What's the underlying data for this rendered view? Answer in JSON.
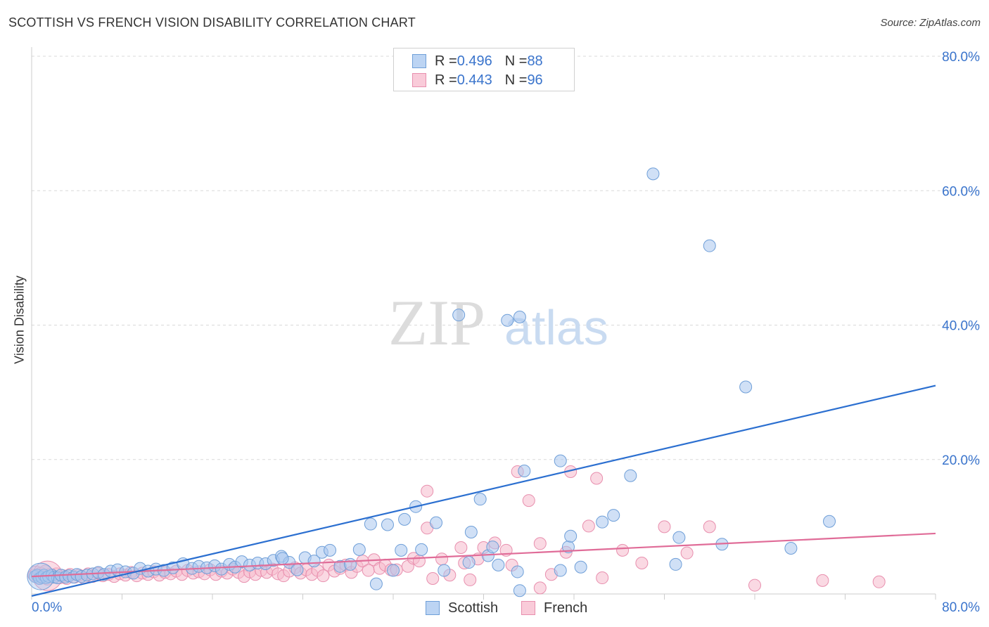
{
  "title": "SCOTTISH VS FRENCH VISION DISABILITY CORRELATION CHART",
  "source": "Source: ZipAtlas.com",
  "legend": {
    "scottish": {
      "r_label": "R = ",
      "r_value": "0.496",
      "n_label": "N = ",
      "n_value": "88"
    },
    "french": {
      "r_label": "R = ",
      "r_value": "0.443",
      "n_label": "N = ",
      "n_value": "96"
    }
  },
  "bottom_legend": {
    "scottish": "Scottish",
    "french": "French"
  },
  "colors": {
    "scottish_fill": "#a9c7ef",
    "scottish_stroke": "#6f9fd8",
    "scottish_line": "#2b6fd0",
    "french_fill": "#f6b9cc",
    "french_stroke": "#e88fae",
    "french_line": "#e06c98",
    "grid": "#d9d9d9",
    "tick_label": "#3a74cc"
  },
  "chart_data": {
    "type": "scatter",
    "title": "SCOTTISH VS FRENCH VISION DISABILITY CORRELATION CHART",
    "xlabel": "",
    "ylabel": "Vision Disability",
    "xlim": [
      0,
      80
    ],
    "ylim": [
      0,
      80
    ],
    "x_tick_labels": [
      "0.0%",
      "80.0%"
    ],
    "y_ticks": [
      20,
      40,
      60,
      80
    ],
    "y_tick_labels": [
      "20.0%",
      "40.0%",
      "60.0%",
      "80.0%"
    ],
    "watermark": {
      "zip": "ZIP",
      "atlas": "atlas"
    },
    "series": [
      {
        "name": "Scottish",
        "r": 0.496,
        "n": 88,
        "trend": {
          "x": [
            0,
            80
          ],
          "y": [
            -0.3,
            31.0
          ]
        },
        "points": [
          [
            0.3,
            2.6
          ],
          [
            0.5,
            2.8
          ],
          [
            0.7,
            2.3
          ],
          [
            0.9,
            2.5
          ],
          [
            1.1,
            2.8
          ],
          [
            1.3,
            2.4
          ],
          [
            1.5,
            2.6
          ],
          [
            1.8,
            2.8
          ],
          [
            2.0,
            2.5
          ],
          [
            2.3,
            2.4
          ],
          [
            2.6,
            2.8
          ],
          [
            3.0,
            2.5
          ],
          [
            3.3,
            2.7
          ],
          [
            3.7,
            2.5
          ],
          [
            4.0,
            2.9
          ],
          [
            4.4,
            2.6
          ],
          [
            4.9,
            2.8
          ],
          [
            5.4,
            3.0
          ],
          [
            5.9,
            3.2
          ],
          [
            6.4,
            2.9
          ],
          [
            7.0,
            3.4
          ],
          [
            7.6,
            3.6
          ],
          [
            8.3,
            3.3
          ],
          [
            9.0,
            3.1
          ],
          [
            9.6,
            3.8
          ],
          [
            10.3,
            3.4
          ],
          [
            11.0,
            3.7
          ],
          [
            11.7,
            3.5
          ],
          [
            12.5,
            3.9
          ],
          [
            13.4,
            4.5
          ],
          [
            14.2,
            3.8
          ],
          [
            14.8,
            4.1
          ],
          [
            15.5,
            3.9
          ],
          [
            16.2,
            4.2
          ],
          [
            16.8,
            3.7
          ],
          [
            17.5,
            4.4
          ],
          [
            18.0,
            4.0
          ],
          [
            18.6,
            4.8
          ],
          [
            19.3,
            4.3
          ],
          [
            20.0,
            4.6
          ],
          [
            20.7,
            4.5
          ],
          [
            21.4,
            5.0
          ],
          [
            22.1,
            5.6
          ],
          [
            22.8,
            4.7
          ],
          [
            23.5,
            3.6
          ],
          [
            24.2,
            5.4
          ],
          [
            25.0,
            4.9
          ],
          [
            25.7,
            6.2
          ],
          [
            26.4,
            6.5
          ],
          [
            27.3,
            4.1
          ],
          [
            28.2,
            4.4
          ],
          [
            29.0,
            6.6
          ],
          [
            22.2,
            5.3
          ],
          [
            30.0,
            10.4
          ],
          [
            30.5,
            1.5
          ],
          [
            31.5,
            10.3
          ],
          [
            32.0,
            3.5
          ],
          [
            32.7,
            6.5
          ],
          [
            33.0,
            11.1
          ],
          [
            34.0,
            13.0
          ],
          [
            34.5,
            6.6
          ],
          [
            35.8,
            10.6
          ],
          [
            36.5,
            3.5
          ],
          [
            37.8,
            41.5
          ],
          [
            38.7,
            4.7
          ],
          [
            38.9,
            9.2
          ],
          [
            39.7,
            14.1
          ],
          [
            40.4,
            5.7
          ],
          [
            40.8,
            7.0
          ],
          [
            41.3,
            4.3
          ],
          [
            42.1,
            40.7
          ],
          [
            43.2,
            41.2
          ],
          [
            43.2,
            0.5
          ],
          [
            43.6,
            18.3
          ],
          [
            43.0,
            3.3
          ],
          [
            46.8,
            19.8
          ],
          [
            46.8,
            3.5
          ],
          [
            47.5,
            7.0
          ],
          [
            47.7,
            8.6
          ],
          [
            48.6,
            4.0
          ],
          [
            50.5,
            10.7
          ],
          [
            51.5,
            11.7
          ],
          [
            53.0,
            17.6
          ],
          [
            55.0,
            62.5
          ],
          [
            57.0,
            4.4
          ],
          [
            57.3,
            8.4
          ],
          [
            60.0,
            51.8
          ],
          [
            61.1,
            7.4
          ],
          [
            63.2,
            30.8
          ],
          [
            67.2,
            6.8
          ],
          [
            70.6,
            10.8
          ]
        ],
        "big_point": [
          0.8,
          2.6
        ]
      },
      {
        "name": "French",
        "r": 0.443,
        "n": 96,
        "trend": {
          "x": [
            0,
            80
          ],
          "y": [
            2.6,
            9.0
          ]
        },
        "points": [
          [
            0.2,
            2.8
          ],
          [
            0.4,
            3.3
          ],
          [
            0.6,
            2.4
          ],
          [
            0.8,
            3.1
          ],
          [
            1.0,
            2.6
          ],
          [
            1.2,
            3.4
          ],
          [
            1.4,
            2.2
          ],
          [
            1.6,
            2.9
          ],
          [
            1.9,
            2.5
          ],
          [
            2.2,
            3.0
          ],
          [
            2.5,
            2.4
          ],
          [
            2.8,
            2.7
          ],
          [
            3.1,
            2.3
          ],
          [
            3.4,
            2.9
          ],
          [
            3.8,
            2.5
          ],
          [
            4.2,
            2.8
          ],
          [
            4.6,
            2.4
          ],
          [
            5.0,
            3.0
          ],
          [
            5.4,
            2.6
          ],
          [
            5.8,
            3.1
          ],
          [
            6.3,
            2.7
          ],
          [
            6.8,
            2.9
          ],
          [
            7.3,
            2.6
          ],
          [
            7.8,
            3.0
          ],
          [
            8.3,
            2.8
          ],
          [
            8.8,
            3.2
          ],
          [
            9.3,
            2.7
          ],
          [
            9.8,
            3.1
          ],
          [
            10.3,
            2.9
          ],
          [
            10.8,
            3.3
          ],
          [
            11.3,
            2.8
          ],
          [
            11.8,
            3.2
          ],
          [
            12.3,
            3.0
          ],
          [
            12.8,
            3.4
          ],
          [
            13.3,
            2.9
          ],
          [
            13.8,
            3.5
          ],
          [
            14.3,
            3.1
          ],
          [
            14.8,
            3.3
          ],
          [
            15.3,
            3.0
          ],
          [
            15.8,
            3.6
          ],
          [
            16.3,
            2.9
          ],
          [
            16.8,
            3.4
          ],
          [
            17.3,
            3.1
          ],
          [
            17.8,
            3.7
          ],
          [
            18.3,
            3.2
          ],
          [
            18.8,
            2.6
          ],
          [
            19.3,
            3.3
          ],
          [
            19.8,
            2.9
          ],
          [
            20.3,
            3.5
          ],
          [
            20.8,
            3.2
          ],
          [
            21.3,
            3.7
          ],
          [
            21.8,
            3.0
          ],
          [
            22.3,
            2.7
          ],
          [
            22.8,
            3.4
          ],
          [
            23.3,
            3.9
          ],
          [
            23.8,
            3.1
          ],
          [
            24.3,
            3.6
          ],
          [
            24.8,
            2.9
          ],
          [
            25.3,
            3.5
          ],
          [
            25.8,
            2.7
          ],
          [
            26.3,
            4.3
          ],
          [
            26.8,
            3.4
          ],
          [
            27.3,
            3.8
          ],
          [
            27.8,
            4.3
          ],
          [
            28.3,
            3.2
          ],
          [
            28.8,
            4.1
          ],
          [
            29.3,
            4.9
          ],
          [
            29.8,
            3.5
          ],
          [
            30.3,
            5.1
          ],
          [
            30.8,
            3.8
          ],
          [
            31.3,
            4.3
          ],
          [
            31.8,
            3.6
          ],
          [
            32.3,
            3.6
          ],
          [
            33.3,
            4.1
          ],
          [
            33.8,
            5.3
          ],
          [
            34.3,
            4.9
          ],
          [
            35.0,
            15.3
          ],
          [
            35.0,
            9.8
          ],
          [
            35.5,
            2.3
          ],
          [
            36.3,
            5.2
          ],
          [
            37.0,
            2.8
          ],
          [
            38.0,
            6.9
          ],
          [
            38.3,
            4.6
          ],
          [
            38.8,
            2.1
          ],
          [
            39.5,
            5.2
          ],
          [
            40.0,
            6.9
          ],
          [
            41.0,
            7.6
          ],
          [
            42.0,
            6.5
          ],
          [
            42.5,
            4.3
          ],
          [
            43.0,
            18.2
          ],
          [
            44.0,
            13.9
          ],
          [
            45.0,
            0.9
          ],
          [
            45.0,
            7.5
          ],
          [
            46.0,
            2.9
          ],
          [
            47.3,
            6.2
          ],
          [
            47.7,
            18.2
          ],
          [
            49.3,
            10.1
          ],
          [
            50.0,
            17.2
          ],
          [
            50.5,
            2.4
          ],
          [
            52.3,
            6.5
          ],
          [
            54.0,
            4.6
          ],
          [
            56.0,
            10.0
          ],
          [
            58.0,
            6.1
          ],
          [
            60.0,
            10.0
          ],
          [
            64.0,
            1.3
          ],
          [
            70.0,
            2.0
          ],
          [
            75.0,
            1.8
          ]
        ],
        "big_point": [
          1.4,
          2.7
        ]
      }
    ]
  }
}
